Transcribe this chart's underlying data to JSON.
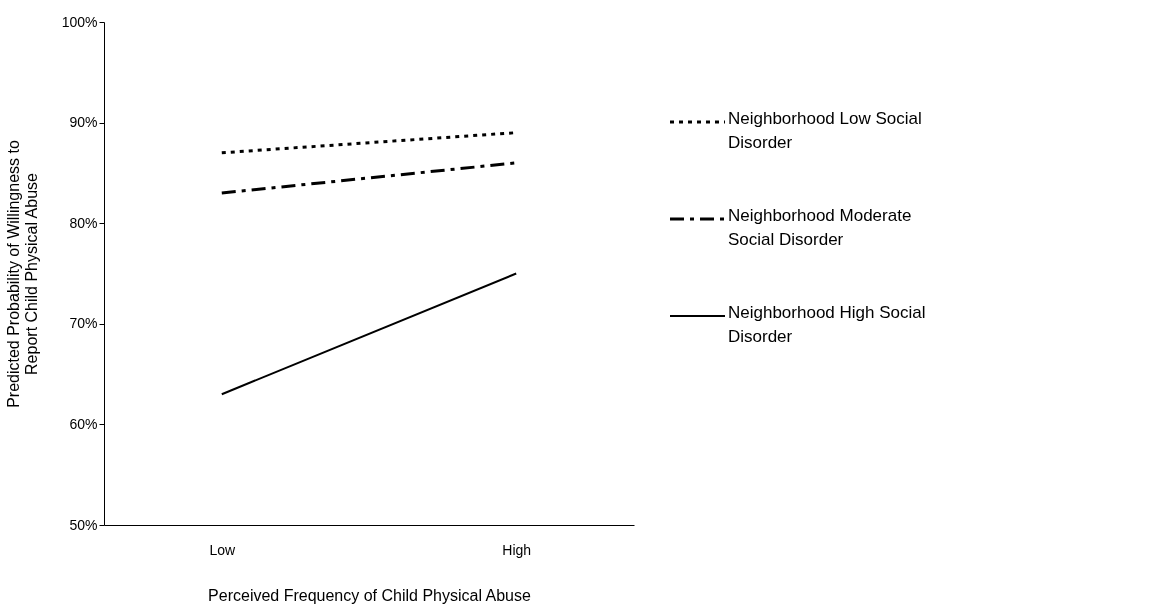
{
  "chart_data": {
    "type": "line",
    "xlabel": "Perceived Frequency of Child Physical Abuse",
    "ylabel": "Predicted Probability of Willingness to Report Child Physical Abuse",
    "categories": [
      "Low",
      "High"
    ],
    "ylim": [
      50,
      100
    ],
    "yticks": [
      {
        "value": 50,
        "label": "50%"
      },
      {
        "value": 60,
        "label": "60%"
      },
      {
        "value": 70,
        "label": "70%"
      },
      {
        "value": 80,
        "label": "80%"
      },
      {
        "value": 90,
        "label": "90%"
      },
      {
        "value": 100,
        "label": "100%"
      }
    ],
    "grid": false,
    "legend": "right",
    "marker": "none",
    "series": [
      {
        "name": "Neighborhood Low Social Disorder",
        "color": "#000000",
        "line_style": "dotted",
        "values": [
          87,
          89
        ]
      },
      {
        "name": "Neighborhood Moderate Social Disorder",
        "color": "#000000",
        "line_style": "dashed",
        "values": [
          83,
          86
        ]
      },
      {
        "name": "Neighborhood High Social Disorder",
        "color": "#000000",
        "line_style": "solid",
        "values": [
          63,
          75
        ]
      }
    ]
  }
}
